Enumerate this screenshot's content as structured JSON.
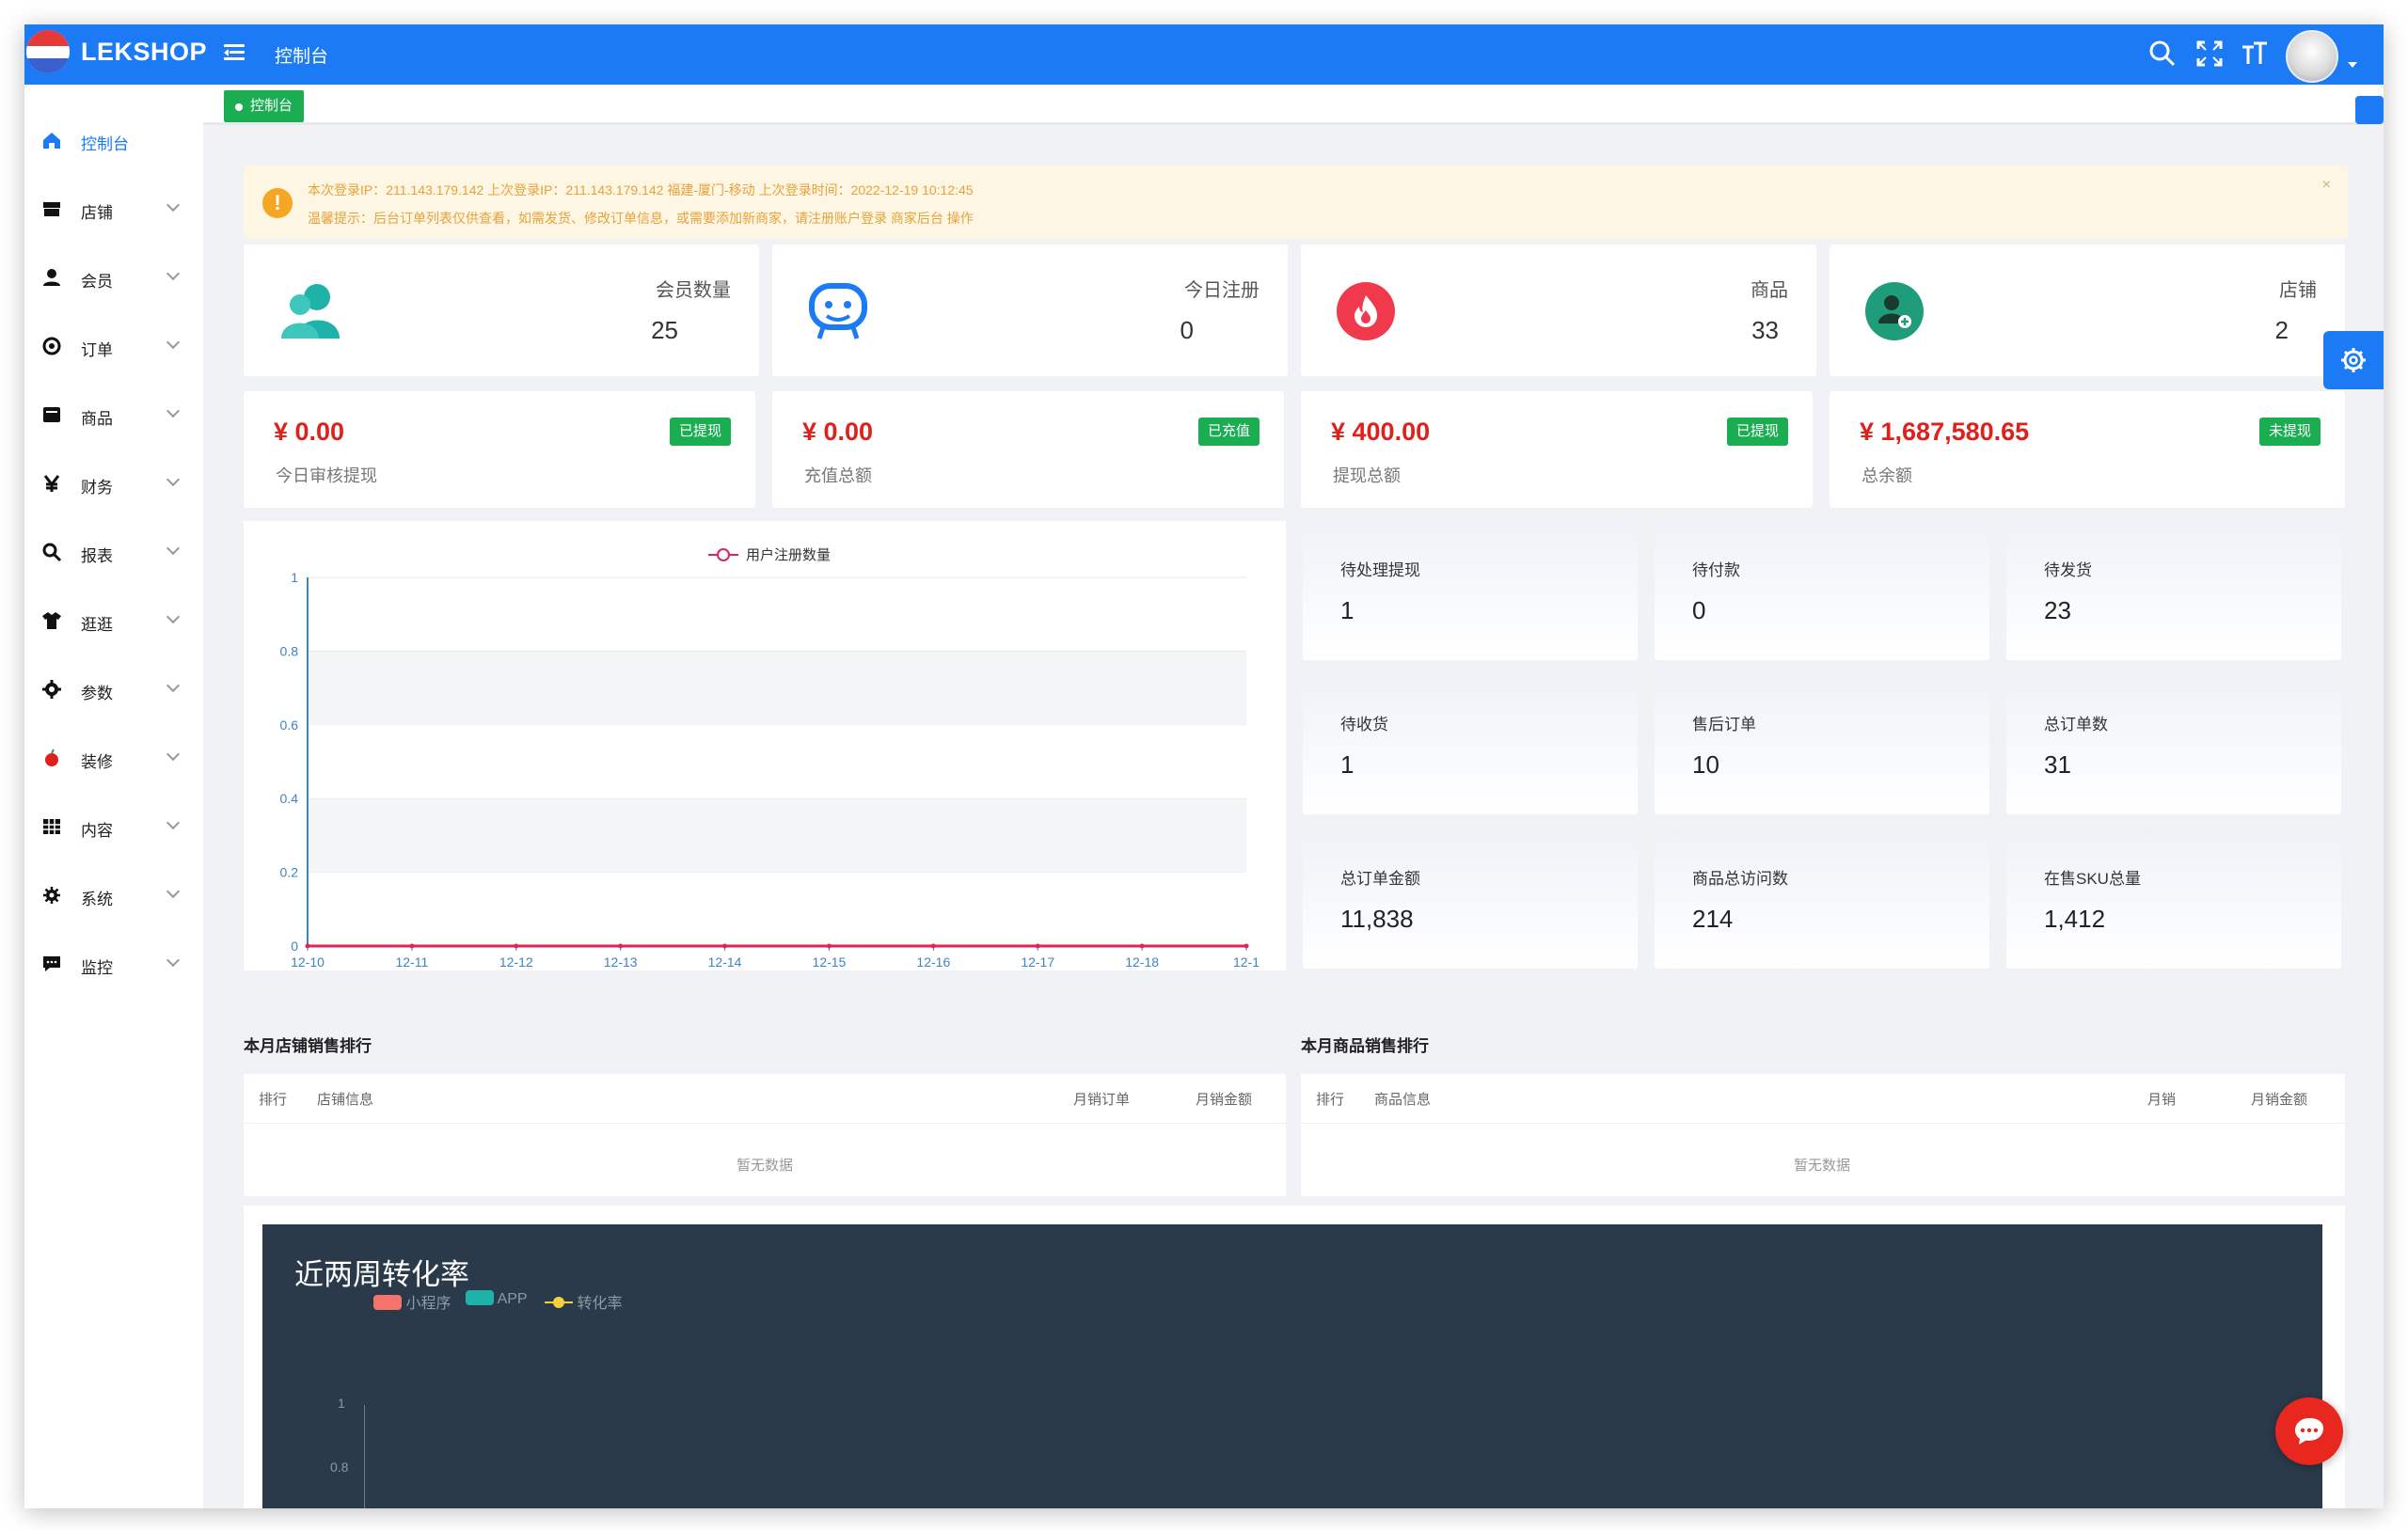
{
  "topbar": {
    "brand": "LEKSHOP",
    "page_title": "控制台"
  },
  "sidebar": {
    "items": [
      {
        "label": "控制台",
        "icon": "home-icon",
        "active": true
      },
      {
        "label": "店铺",
        "icon": "store-icon"
      },
      {
        "label": "会员",
        "icon": "user-icon"
      },
      {
        "label": "订单",
        "icon": "order-icon"
      },
      {
        "label": "商品",
        "icon": "goods-icon"
      },
      {
        "label": "财务",
        "icon": "yen-icon"
      },
      {
        "label": "报表",
        "icon": "search-icon"
      },
      {
        "label": "逛逛",
        "icon": "shirt-icon"
      },
      {
        "label": "参数",
        "icon": "gear-icon"
      },
      {
        "label": "装修",
        "icon": "apple-icon"
      },
      {
        "label": "内容",
        "icon": "grid-icon"
      },
      {
        "label": "系统",
        "icon": "settings-icon"
      },
      {
        "label": "监控",
        "icon": "chat-icon"
      }
    ]
  },
  "tab": {
    "active_label": "控制台"
  },
  "alert": {
    "line1": "本次登录IP：211.143.179.142    上次登录IP：211.143.179.142 福建-厦门-移动    上次登录时间：2022-12-19 10:12:45",
    "line2": "温馨提示：后台订单列表仅供查看，如需发货、修改订单信息，或需要添加新商家，请注册账户登录 商家后台 操作",
    "close": "×"
  },
  "stats": [
    {
      "label": "会员数量",
      "value": "25",
      "color": "#1fb2a8"
    },
    {
      "label": "今日注册",
      "value": "0",
      "color": "#1c7bf4"
    },
    {
      "label": "商品",
      "value": "33",
      "color": "#f0394c"
    },
    {
      "label": "店铺",
      "value": "2",
      "color": "#1f9d7a"
    }
  ],
  "money": [
    {
      "amount": "¥  0.00",
      "label": "今日审核提现",
      "badge": "已提现"
    },
    {
      "amount": "¥  0.00",
      "label": "充值总额",
      "badge": "已充值"
    },
    {
      "amount": "¥  400.00",
      "label": "提现总额",
      "badge": "已提现"
    },
    {
      "amount": "¥  1,687,580.65",
      "label": "总余额",
      "badge": "未提现"
    }
  ],
  "mini": [
    {
      "label": "待处理提现",
      "value": "1"
    },
    {
      "label": "待付款",
      "value": "0"
    },
    {
      "label": "待发货",
      "value": "23"
    },
    {
      "label": "待收货",
      "value": "1"
    },
    {
      "label": "售后订单",
      "value": "10"
    },
    {
      "label": "总订单数",
      "value": "31"
    },
    {
      "label": "总订单金额",
      "value": "11,838"
    },
    {
      "label": "商品总访问数",
      "value": "214"
    },
    {
      "label": "在售SKU总量",
      "value": "1,412"
    }
  ],
  "chart_data": [
    {
      "type": "line",
      "series": [
        {
          "name": "用户注册数量",
          "color": "#e0235a",
          "values": [
            0,
            0,
            0,
            0,
            0,
            0,
            0,
            0,
            0,
            0
          ]
        }
      ],
      "x": [
        "12-10",
        "12-11",
        "12-12",
        "12-13",
        "12-14",
        "12-15",
        "12-16",
        "12-17",
        "12-18",
        "12-1"
      ],
      "y_ticks": [
        "0",
        "0.2",
        "0.4",
        "0.6",
        "0.8",
        "1"
      ],
      "ylim": [
        0,
        1
      ]
    },
    {
      "type": "bar",
      "title": "近两周转化率",
      "series": [
        {
          "name": "小程序",
          "color": "#f4736b"
        },
        {
          "name": "APP",
          "color": "#1fb2a8"
        },
        {
          "name": "转化率",
          "color": "#f7d13b"
        }
      ],
      "y_ticks": [
        "1",
        "0.8"
      ]
    }
  ],
  "shop_rank": {
    "title": "本月店铺销售排行",
    "headers": [
      "排行",
      "店铺信息",
      "月销订单",
      "月销金额"
    ],
    "empty": "暂无数据"
  },
  "goods_rank": {
    "title": "本月商品销售排行",
    "headers": [
      "排行",
      "商品信息",
      "月销",
      "月销金额"
    ],
    "empty": "暂无数据"
  }
}
